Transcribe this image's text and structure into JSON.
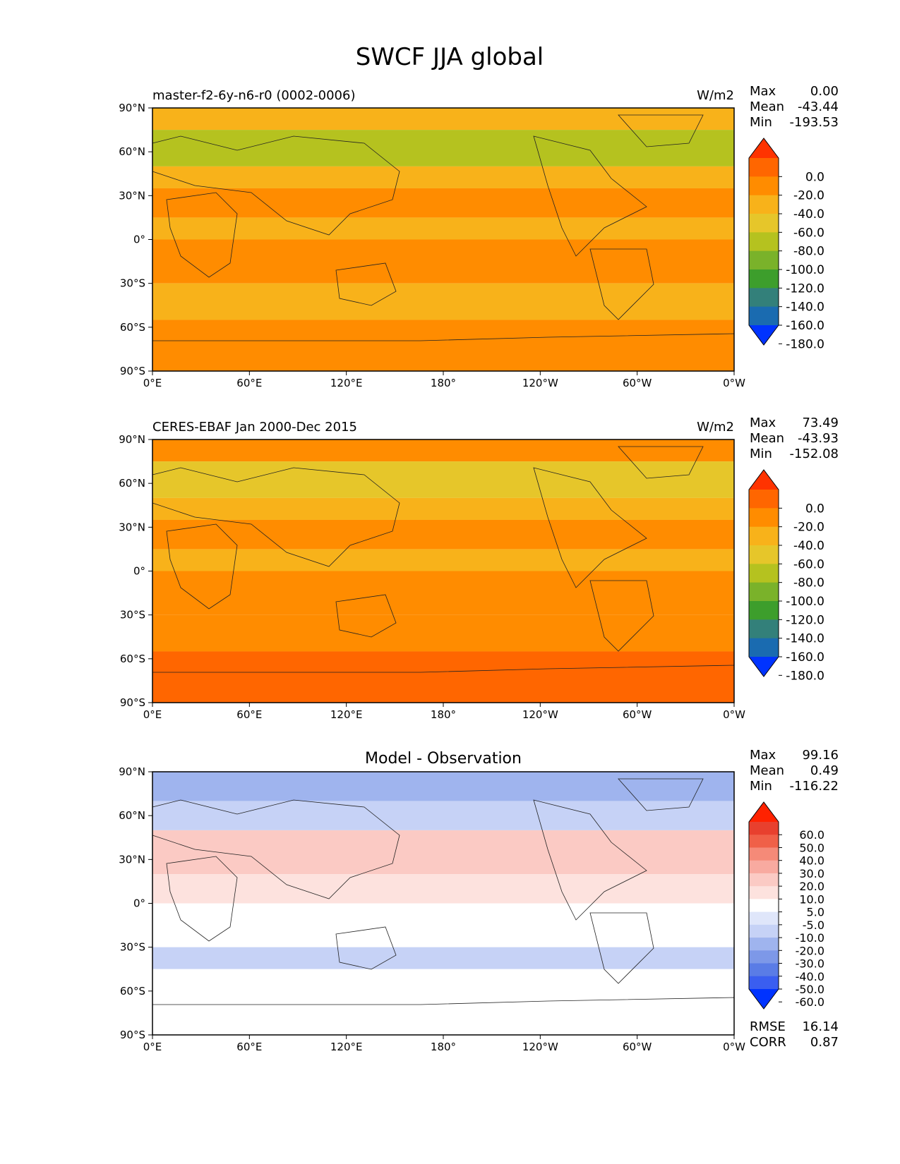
{
  "title": "SWCF JJA global",
  "lat_ticks": [
    "90°N",
    "60°N",
    "30°N",
    "0°",
    "30°S",
    "60°S",
    "90°S"
  ],
  "lon_ticks": [
    "0°E",
    "60°E",
    "120°E",
    "180°",
    "120°W",
    "60°W",
    "0°W"
  ],
  "panels": [
    {
      "title_left": "master-f2-6y-n6-r0 (0002-0006)",
      "units": "W/m2",
      "stats": [
        {
          "label": "Max",
          "value": "0.00"
        },
        {
          "label": "Mean",
          "value": "-43.44"
        },
        {
          "label": "Min",
          "value": "-193.53"
        }
      ],
      "colorbar": {
        "labels": [
          "0.0",
          "-20.0",
          "-40.0",
          "-60.0",
          "-80.0",
          "-100.0",
          "-120.0",
          "-140.0",
          "-160.0",
          "-180.0"
        ],
        "colors": [
          "#ff3300",
          "#ff6600",
          "#ff8c00",
          "#f8b21a",
          "#e6c62a",
          "#b5c21f",
          "#7ab22a",
          "#3d9e2c",
          "#33807a",
          "#1a6bb0",
          "#0033ff"
        ]
      }
    },
    {
      "title_left": "CERES-EBAF Jan 2000-Dec 2015",
      "units": "W/m2",
      "stats": [
        {
          "label": "Max",
          "value": "73.49"
        },
        {
          "label": "Mean",
          "value": "-43.93"
        },
        {
          "label": "Min",
          "value": "-152.08"
        }
      ],
      "colorbar": {
        "labels": [
          "0.0",
          "-20.0",
          "-40.0",
          "-60.0",
          "-80.0",
          "-100.0",
          "-120.0",
          "-140.0",
          "-160.0",
          "-180.0"
        ],
        "colors": [
          "#ff3300",
          "#ff6600",
          "#ff8c00",
          "#f8b21a",
          "#e6c62a",
          "#b5c21f",
          "#7ab22a",
          "#3d9e2c",
          "#33807a",
          "#1a6bb0",
          "#0033ff"
        ]
      }
    },
    {
      "title_center": "Model - Observation",
      "stats": [
        {
          "label": "Max",
          "value": "99.16"
        },
        {
          "label": "Mean",
          "value": "0.49"
        },
        {
          "label": "Min",
          "value": "-116.22"
        }
      ],
      "extra_stats": [
        {
          "label": "RMSE",
          "value": "16.14"
        },
        {
          "label": "CORR",
          "value": "0.87"
        }
      ],
      "colorbar": {
        "labels": [
          "60.0",
          "50.0",
          "40.0",
          "30.0",
          "20.0",
          "10.0",
          "5.0",
          "-5.0",
          "-10.0",
          "-20.0",
          "-30.0",
          "-40.0",
          "-50.0",
          "-60.0"
        ],
        "colors": [
          "#ff2200",
          "#e8402e",
          "#f06048",
          "#f58a78",
          "#f8aaa0",
          "#fbcac4",
          "#fde2de",
          "#ffffff",
          "#dfe6fa",
          "#c6d2f6",
          "#9fb4ee",
          "#7d98e8",
          "#5a7ce6",
          "#3a5ef0",
          "#0033ff"
        ]
      }
    }
  ],
  "chart_data": [
    {
      "type": "heatmap",
      "title": "master-f2-6y-n6-r0 (0002-0006)",
      "units": "W/m2",
      "xlabel": "",
      "ylabel": "",
      "xlim": [
        0,
        360
      ],
      "ylim": [
        -90,
        90
      ],
      "x_ticks": [
        "0°E",
        "60°E",
        "120°E",
        "180°",
        "120°W",
        "60°W",
        "0°W"
      ],
      "y_ticks": [
        "90°N",
        "60°N",
        "30°N",
        "0°",
        "30°S",
        "60°S",
        "90°S"
      ],
      "levels": [
        -180,
        -160,
        -140,
        -120,
        -100,
        -80,
        -60,
        -40,
        -20,
        0
      ],
      "stats": {
        "max": 0.0,
        "mean": -43.44,
        "min": -193.53
      },
      "zonal_bands": [
        {
          "lat": [
            75,
            90
          ],
          "value": -50
        },
        {
          "lat": [
            50,
            75
          ],
          "value": -85
        },
        {
          "lat": [
            35,
            50
          ],
          "value": -55
        },
        {
          "lat": [
            15,
            35
          ],
          "value": -30
        },
        {
          "lat": [
            0,
            15
          ],
          "value": -45
        },
        {
          "lat": [
            -30,
            0
          ],
          "value": -30
        },
        {
          "lat": [
            -55,
            -30
          ],
          "value": -45
        },
        {
          "lat": [
            -90,
            -55
          ],
          "value": -22
        }
      ]
    },
    {
      "type": "heatmap",
      "title": "CERES-EBAF Jan 2000-Dec 2015",
      "units": "W/m2",
      "xlabel": "",
      "ylabel": "",
      "xlim": [
        0,
        360
      ],
      "ylim": [
        -90,
        90
      ],
      "x_ticks": [
        "0°E",
        "60°E",
        "120°E",
        "180°",
        "120°W",
        "60°W",
        "0°W"
      ],
      "y_ticks": [
        "90°N",
        "60°N",
        "30°N",
        "0°",
        "30°S",
        "60°S",
        "90°S"
      ],
      "levels": [
        -180,
        -160,
        -140,
        -120,
        -100,
        -80,
        -60,
        -40,
        -20,
        0
      ],
      "stats": {
        "max": 73.49,
        "mean": -43.93,
        "min": -152.08
      },
      "zonal_bands": [
        {
          "lat": [
            75,
            90
          ],
          "value": -40
        },
        {
          "lat": [
            50,
            75
          ],
          "value": -75
        },
        {
          "lat": [
            35,
            50
          ],
          "value": -55
        },
        {
          "lat": [
            15,
            35
          ],
          "value": -35
        },
        {
          "lat": [
            0,
            15
          ],
          "value": -45
        },
        {
          "lat": [
            -30,
            0
          ],
          "value": -30
        },
        {
          "lat": [
            -55,
            -30
          ],
          "value": -38
        },
        {
          "lat": [
            -90,
            -55
          ],
          "value": -10
        }
      ]
    },
    {
      "type": "heatmap",
      "title": "Model - Observation",
      "xlabel": "",
      "ylabel": "",
      "xlim": [
        0,
        360
      ],
      "ylim": [
        -90,
        90
      ],
      "x_ticks": [
        "0°E",
        "60°E",
        "120°E",
        "180°",
        "120°W",
        "60°W",
        "0°W"
      ],
      "y_ticks": [
        "90°N",
        "60°N",
        "30°N",
        "0°",
        "30°S",
        "60°S",
        "90°S"
      ],
      "levels": [
        -60,
        -50,
        -40,
        -30,
        -20,
        -10,
        -5,
        5,
        10,
        20,
        30,
        40,
        50,
        60
      ],
      "stats": {
        "max": 99.16,
        "mean": 0.49,
        "min": -116.22,
        "rmse": 16.14,
        "corr": 0.87
      },
      "zonal_bands": [
        {
          "lat": [
            70,
            90
          ],
          "value": -30
        },
        {
          "lat": [
            50,
            70
          ],
          "value": -15
        },
        {
          "lat": [
            20,
            50
          ],
          "value": 15
        },
        {
          "lat": [
            0,
            20
          ],
          "value": 5
        },
        {
          "lat": [
            -30,
            0
          ],
          "value": -5
        },
        {
          "lat": [
            -45,
            -30
          ],
          "value": -12
        },
        {
          "lat": [
            -90,
            -45
          ],
          "value": 0
        }
      ]
    }
  ]
}
